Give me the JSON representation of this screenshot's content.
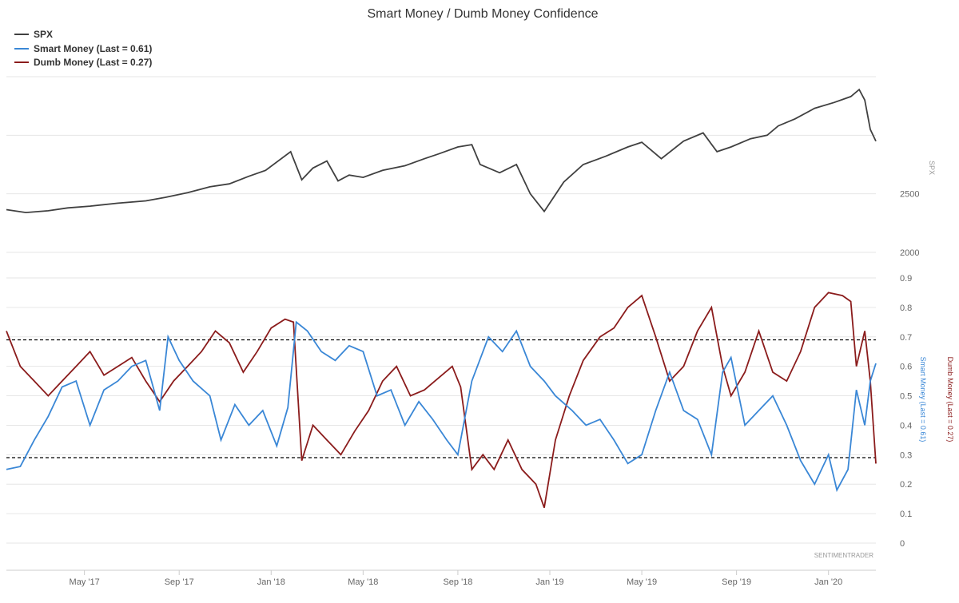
{
  "chart_data": {
    "type": "line",
    "title": "Smart Money / Dumb Money Confidence",
    "watermark": "SENTIMENTRADER",
    "colors": {
      "spx": "#404040",
      "smart": "#3a87d6",
      "dumb": "#8b1c1c",
      "threshold": "#000000"
    },
    "legend": [
      {
        "name": "SPX",
        "color": "#404040"
      },
      {
        "name": "Smart Money (Last = 0.61)",
        "color": "#3a87d6"
      },
      {
        "name": "Dumb Money (Last = 0.27)",
        "color": "#8b1c1c"
      }
    ],
    "x_range": [
      2017.05,
      2020.17
    ],
    "x_ticks": [
      {
        "label": "May '17",
        "t": 2017.33
      },
      {
        "label": "Sep '17",
        "t": 2017.67
      },
      {
        "label": "Jan '18",
        "t": 2018.0
      },
      {
        "label": "May '18",
        "t": 2018.33
      },
      {
        "label": "Sep '18",
        "t": 2018.67
      },
      {
        "label": "Jan '19",
        "t": 2019.0
      },
      {
        "label": "May '19",
        "t": 2019.33
      },
      {
        "label": "Sep '19",
        "t": 2019.67
      },
      {
        "label": "Jan '20",
        "t": 2020.0
      }
    ],
    "spx_panel": {
      "axis_title": "SPX",
      "ylim": [
        2000,
        3500
      ],
      "y_ticks": [
        2000,
        2500
      ],
      "series": [
        [
          2017.05,
          2365
        ],
        [
          2017.12,
          2340
        ],
        [
          2017.2,
          2355
        ],
        [
          2017.27,
          2380
        ],
        [
          2017.35,
          2395
        ],
        [
          2017.45,
          2420
        ],
        [
          2017.55,
          2440
        ],
        [
          2017.62,
          2470
        ],
        [
          2017.7,
          2510
        ],
        [
          2017.78,
          2560
        ],
        [
          2017.85,
          2585
        ],
        [
          2017.92,
          2650
        ],
        [
          2017.98,
          2700
        ],
        [
          2018.07,
          2860
        ],
        [
          2018.11,
          2620
        ],
        [
          2018.15,
          2720
        ],
        [
          2018.2,
          2780
        ],
        [
          2018.24,
          2610
        ],
        [
          2018.28,
          2660
        ],
        [
          2018.33,
          2640
        ],
        [
          2018.4,
          2700
        ],
        [
          2018.48,
          2740
        ],
        [
          2018.55,
          2800
        ],
        [
          2018.6,
          2840
        ],
        [
          2018.67,
          2900
        ],
        [
          2018.72,
          2920
        ],
        [
          2018.75,
          2750
        ],
        [
          2018.82,
          2680
        ],
        [
          2018.88,
          2750
        ],
        [
          2018.93,
          2500
        ],
        [
          2018.98,
          2350
        ],
        [
          2019.05,
          2600
        ],
        [
          2019.12,
          2750
        ],
        [
          2019.2,
          2820
        ],
        [
          2019.28,
          2900
        ],
        [
          2019.33,
          2940
        ],
        [
          2019.4,
          2800
        ],
        [
          2019.48,
          2950
        ],
        [
          2019.55,
          3020
        ],
        [
          2019.6,
          2860
        ],
        [
          2019.65,
          2900
        ],
        [
          2019.72,
          2970
        ],
        [
          2019.78,
          3000
        ],
        [
          2019.82,
          3080
        ],
        [
          2019.88,
          3140
        ],
        [
          2019.95,
          3230
        ],
        [
          2020.02,
          3280
        ],
        [
          2020.08,
          3330
        ],
        [
          2020.11,
          3390
        ],
        [
          2020.13,
          3300
        ],
        [
          2020.15,
          3050
        ],
        [
          2020.17,
          2950
        ]
      ]
    },
    "sentiment_panel": {
      "ylim": [
        0,
        0.9
      ],
      "y_ticks": [
        0,
        0.1,
        0.2,
        0.3,
        0.4,
        0.5,
        0.6,
        0.7,
        0.8,
        0.9
      ],
      "thresholds": [
        0.69,
        0.29
      ],
      "smart_axis_title": "Smart Money (Last = 0.61)",
      "dumb_axis_title": "Dumb Money (Last = 0.27)",
      "smart_series": [
        [
          2017.05,
          0.25
        ],
        [
          2017.1,
          0.26
        ],
        [
          2017.15,
          0.35
        ],
        [
          2017.2,
          0.43
        ],
        [
          2017.25,
          0.53
        ],
        [
          2017.3,
          0.55
        ],
        [
          2017.35,
          0.4
        ],
        [
          2017.4,
          0.52
        ],
        [
          2017.45,
          0.55
        ],
        [
          2017.5,
          0.6
        ],
        [
          2017.55,
          0.62
        ],
        [
          2017.6,
          0.45
        ],
        [
          2017.63,
          0.7
        ],
        [
          2017.67,
          0.62
        ],
        [
          2017.72,
          0.55
        ],
        [
          2017.78,
          0.5
        ],
        [
          2017.82,
          0.35
        ],
        [
          2017.87,
          0.47
        ],
        [
          2017.92,
          0.4
        ],
        [
          2017.97,
          0.45
        ],
        [
          2018.02,
          0.33
        ],
        [
          2018.06,
          0.46
        ],
        [
          2018.09,
          0.75
        ],
        [
          2018.13,
          0.72
        ],
        [
          2018.18,
          0.65
        ],
        [
          2018.23,
          0.62
        ],
        [
          2018.28,
          0.67
        ],
        [
          2018.33,
          0.65
        ],
        [
          2018.38,
          0.5
        ],
        [
          2018.43,
          0.52
        ],
        [
          2018.48,
          0.4
        ],
        [
          2018.53,
          0.48
        ],
        [
          2018.58,
          0.42
        ],
        [
          2018.63,
          0.35
        ],
        [
          2018.67,
          0.3
        ],
        [
          2018.72,
          0.55
        ],
        [
          2018.78,
          0.7
        ],
        [
          2018.83,
          0.65
        ],
        [
          2018.88,
          0.72
        ],
        [
          2018.93,
          0.6
        ],
        [
          2018.98,
          0.55
        ],
        [
          2019.02,
          0.5
        ],
        [
          2019.08,
          0.45
        ],
        [
          2019.13,
          0.4
        ],
        [
          2019.18,
          0.42
        ],
        [
          2019.23,
          0.35
        ],
        [
          2019.28,
          0.27
        ],
        [
          2019.33,
          0.3
        ],
        [
          2019.38,
          0.45
        ],
        [
          2019.43,
          0.58
        ],
        [
          2019.48,
          0.45
        ],
        [
          2019.53,
          0.42
        ],
        [
          2019.58,
          0.3
        ],
        [
          2019.62,
          0.58
        ],
        [
          2019.65,
          0.63
        ],
        [
          2019.7,
          0.4
        ],
        [
          2019.75,
          0.45
        ],
        [
          2019.8,
          0.5
        ],
        [
          2019.85,
          0.4
        ],
        [
          2019.9,
          0.28
        ],
        [
          2019.95,
          0.2
        ],
        [
          2020.0,
          0.3
        ],
        [
          2020.03,
          0.18
        ],
        [
          2020.07,
          0.25
        ],
        [
          2020.1,
          0.52
        ],
        [
          2020.13,
          0.4
        ],
        [
          2020.15,
          0.55
        ],
        [
          2020.17,
          0.61
        ]
      ],
      "dumb_series": [
        [
          2017.05,
          0.72
        ],
        [
          2017.1,
          0.6
        ],
        [
          2017.15,
          0.55
        ],
        [
          2017.2,
          0.5
        ],
        [
          2017.25,
          0.55
        ],
        [
          2017.3,
          0.6
        ],
        [
          2017.35,
          0.65
        ],
        [
          2017.4,
          0.57
        ],
        [
          2017.45,
          0.6
        ],
        [
          2017.5,
          0.63
        ],
        [
          2017.55,
          0.55
        ],
        [
          2017.6,
          0.48
        ],
        [
          2017.65,
          0.55
        ],
        [
          2017.7,
          0.6
        ],
        [
          2017.75,
          0.65
        ],
        [
          2017.8,
          0.72
        ],
        [
          2017.85,
          0.68
        ],
        [
          2017.9,
          0.58
        ],
        [
          2017.95,
          0.65
        ],
        [
          2018.0,
          0.73
        ],
        [
          2018.05,
          0.76
        ],
        [
          2018.08,
          0.75
        ],
        [
          2018.11,
          0.28
        ],
        [
          2018.15,
          0.4
        ],
        [
          2018.2,
          0.35
        ],
        [
          2018.25,
          0.3
        ],
        [
          2018.3,
          0.38
        ],
        [
          2018.35,
          0.45
        ],
        [
          2018.4,
          0.55
        ],
        [
          2018.45,
          0.6
        ],
        [
          2018.5,
          0.5
        ],
        [
          2018.55,
          0.52
        ],
        [
          2018.6,
          0.56
        ],
        [
          2018.65,
          0.6
        ],
        [
          2018.68,
          0.53
        ],
        [
          2018.72,
          0.25
        ],
        [
          2018.76,
          0.3
        ],
        [
          2018.8,
          0.25
        ],
        [
          2018.85,
          0.35
        ],
        [
          2018.9,
          0.25
        ],
        [
          2018.95,
          0.2
        ],
        [
          2018.98,
          0.12
        ],
        [
          2019.02,
          0.35
        ],
        [
          2019.07,
          0.5
        ],
        [
          2019.12,
          0.62
        ],
        [
          2019.18,
          0.7
        ],
        [
          2019.23,
          0.73
        ],
        [
          2019.28,
          0.8
        ],
        [
          2019.33,
          0.84
        ],
        [
          2019.38,
          0.7
        ],
        [
          2019.43,
          0.55
        ],
        [
          2019.48,
          0.6
        ],
        [
          2019.53,
          0.72
        ],
        [
          2019.58,
          0.8
        ],
        [
          2019.62,
          0.6
        ],
        [
          2019.65,
          0.5
        ],
        [
          2019.7,
          0.58
        ],
        [
          2019.75,
          0.72
        ],
        [
          2019.8,
          0.58
        ],
        [
          2019.85,
          0.55
        ],
        [
          2019.9,
          0.65
        ],
        [
          2019.95,
          0.8
        ],
        [
          2020.0,
          0.85
        ],
        [
          2020.05,
          0.84
        ],
        [
          2020.08,
          0.82
        ],
        [
          2020.1,
          0.6
        ],
        [
          2020.13,
          0.72
        ],
        [
          2020.15,
          0.55
        ],
        [
          2020.17,
          0.27
        ]
      ]
    }
  }
}
